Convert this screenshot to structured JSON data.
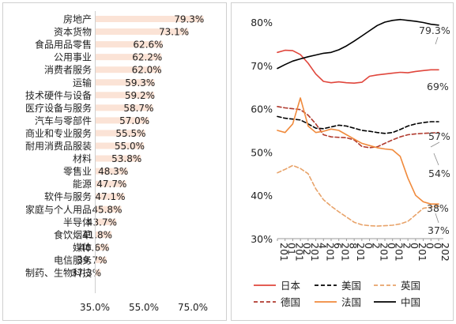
{
  "chart_data": [
    {
      "type": "bar",
      "orientation": "horizontal",
      "categories": [
        "房地产",
        "资本货物",
        "食品用品零售",
        "公用事业",
        "消费者服务",
        "运输",
        "技术硬件与设备",
        "医疗设备与服务",
        "汽车与零部件",
        "商业和专业服务",
        "耐用消费品服装",
        "材料",
        "零售业",
        "能源",
        "软件与服务",
        "家庭与个人用品",
        "半导体",
        "食饮烟草",
        "媒体",
        "电信服务",
        "制药、生物科技"
      ],
      "values": [
        79.3,
        73.1,
        62.6,
        62.2,
        62.0,
        59.3,
        59.2,
        58.7,
        57.0,
        55.5,
        55.0,
        53.8,
        48.3,
        47.7,
        47.1,
        45.8,
        43.7,
        41.8,
        40.6,
        39.7,
        37.3
      ],
      "value_labels": [
        "79.3%",
        "73.1%",
        "62.6%",
        "62.2%",
        "62.0%",
        "59.3%",
        "59.2%",
        "58.7%",
        "57.0%",
        "55.5%",
        "55.0%",
        "53.8%",
        "48.3%",
        "47.7%",
        "47.1%",
        "45.8%",
        "43.7%",
        "41.8%",
        "40.6%",
        "39.7%",
        "37.3%"
      ],
      "xlim": [
        35,
        85
      ],
      "xticks": [
        35,
        55,
        75
      ],
      "xtick_labels": [
        "35.0%",
        "55.0%",
        "75.0%"
      ],
      "bar_color": "#fbe3d6",
      "grid": false
    },
    {
      "type": "line",
      "x": [
        2000,
        2001,
        2002,
        2003,
        2004,
        2005,
        2006,
        2007,
        2008,
        2009,
        2010,
        2011,
        2012,
        2013,
        2014,
        2015,
        2016,
        2017,
        2018,
        2019,
        2020,
        2021
      ],
      "xtick_labels": [
        "201",
        "01",
        "201",
        "02",
        "201",
        "4",
        "201",
        "6",
        "201",
        "8",
        "201",
        "0",
        "2",
        "201",
        "0",
        "201",
        "2",
        "0",
        "201",
        "0",
        "0",
        "202"
      ],
      "ylim": [
        30,
        82
      ],
      "yticks": [
        30,
        40,
        50,
        60,
        70,
        80
      ],
      "ytick_labels": [
        "30%",
        "40%",
        "50%",
        "60%",
        "70%",
        "80%"
      ],
      "grid": false,
      "legend_position": "bottom",
      "series": [
        {
          "name": "日本",
          "color": "#e0463c",
          "dash": "solid",
          "values": [
            73.0,
            73.5,
            73.4,
            72.5,
            70.5,
            68.0,
            66.3,
            66.0,
            66.2,
            66.0,
            65.9,
            66.1,
            67.5,
            67.8,
            68.0,
            68.2,
            68.4,
            68.3,
            68.6,
            68.8,
            69.0,
            69.0
          ],
          "end_label": "69%"
        },
        {
          "name": "美国",
          "color": "#000000",
          "dash": "dashed",
          "values": [
            58.2,
            57.8,
            57.6,
            57.4,
            56.5,
            55.5,
            55.4,
            55.8,
            56.2,
            56.0,
            55.5,
            55.0,
            54.8,
            54.5,
            54.3,
            54.5,
            55.2,
            56.0,
            56.5,
            56.8,
            57.0,
            57.0
          ],
          "end_label": "57%"
        },
        {
          "name": "英国",
          "color": "#e8a36a",
          "dash": "dashed",
          "values": [
            45.2,
            46.0,
            46.9,
            46.2,
            45.0,
            41.5,
            39.0,
            37.5,
            36.2,
            35.0,
            33.8,
            33.2,
            33.0,
            32.9,
            33.0,
            33.1,
            33.4,
            34.0,
            35.5,
            37.0,
            37.3,
            37.5
          ],
          "end_label": "37%"
        },
        {
          "name": "德国",
          "color": "#b03a2e",
          "dash": "dashed",
          "values": [
            60.5,
            60.2,
            60.0,
            59.8,
            58.5,
            56.5,
            54.0,
            53.5,
            53.4,
            53.3,
            52.8,
            51.3,
            51.0,
            51.2,
            52.0,
            52.8,
            53.5,
            54.0,
            54.2,
            54.3,
            54.4,
            54.5
          ],
          "end_label": "54%"
        },
        {
          "name": "法国",
          "color": "#f08a3c",
          "dash": "solid",
          "values": [
            55.0,
            54.5,
            56.5,
            62.5,
            56.0,
            54.5,
            54.8,
            55.3,
            55.0,
            54.0,
            53.0,
            52.0,
            51.5,
            51.0,
            50.7,
            50.5,
            49.0,
            44.0,
            40.0,
            38.5,
            38.0,
            38.0
          ],
          "end_label": "38%"
        },
        {
          "name": "中国",
          "color": "#000000",
          "dash": "solid",
          "values": [
            69.3,
            70.2,
            71.0,
            71.5,
            72.0,
            72.4,
            72.8,
            73.0,
            73.6,
            74.5,
            75.6,
            76.8,
            78.0,
            79.2,
            80.0,
            80.4,
            80.6,
            80.4,
            80.2,
            79.9,
            79.5,
            79.3
          ],
          "end_label": "79.3%"
        }
      ]
    }
  ]
}
